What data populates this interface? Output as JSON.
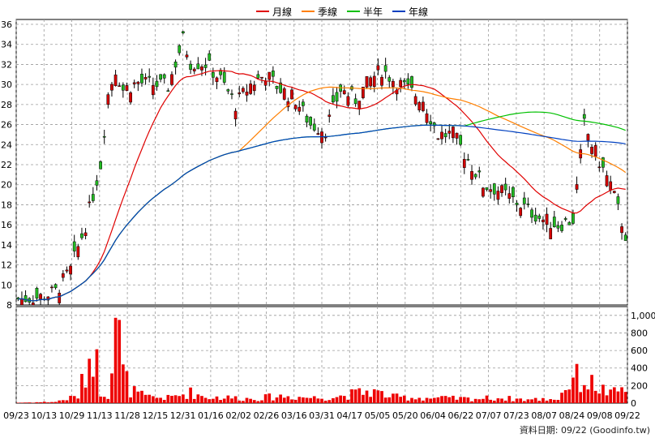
{
  "legend": [
    {
      "label": "月線",
      "color": "#e00000"
    },
    {
      "label": "季線",
      "color": "#ff7f00"
    },
    {
      "label": "半年",
      "color": "#00c000"
    },
    {
      "label": "年線",
      "color": "#0040c0"
    }
  ],
  "credit": "資料日期: 09/22  (Goodinfo.tw)",
  "chart_data": {
    "type": "candlestick",
    "price_axis": {
      "min": 8,
      "max": 36,
      "ticks": [
        "8",
        "10",
        "12",
        "14",
        "16",
        "18",
        "20",
        "22",
        "24",
        "26",
        "28",
        "30",
        "32",
        "34",
        "36"
      ]
    },
    "volume_axis": {
      "min": 0,
      "max": 1100,
      "ticks": [
        "0",
        "200",
        "400",
        "600",
        "800",
        "1,000"
      ]
    },
    "x_labels": [
      "09/23",
      "10/13",
      "10/29",
      "11/13",
      "11/28",
      "12/15",
      "12/31",
      "01/16",
      "02/02",
      "02/26",
      "03/16",
      "03/31",
      "04/17",
      "05/05",
      "05/20",
      "06/04",
      "06/22",
      "07/07",
      "07/23",
      "08/07",
      "08/24",
      "09/08",
      "09/22"
    ],
    "price_keypoints": [
      [
        0,
        8.6
      ],
      [
        6,
        8.8
      ],
      [
        10,
        9.3
      ],
      [
        14,
        11.5
      ],
      [
        18,
        16
      ],
      [
        22,
        22
      ],
      [
        24,
        29
      ],
      [
        26,
        31.5
      ],
      [
        28,
        29.5
      ],
      [
        32,
        30.2
      ],
      [
        36,
        30
      ],
      [
        40,
        29.8
      ],
      [
        44,
        34.5
      ],
      [
        46,
        32.2
      ],
      [
        50,
        32.1
      ],
      [
        54,
        30.5
      ],
      [
        58,
        28
      ],
      [
        62,
        30
      ],
      [
        66,
        31
      ],
      [
        70,
        29.5
      ],
      [
        74,
        28.5
      ],
      [
        78,
        26
      ],
      [
        82,
        25.5
      ],
      [
        86,
        29.5
      ],
      [
        90,
        28.5
      ],
      [
        94,
        30.5
      ],
      [
        97,
        31.5
      ],
      [
        100,
        30.5
      ],
      [
        104,
        29.5
      ],
      [
        108,
        28.5
      ],
      [
        112,
        25
      ],
      [
        116,
        25
      ],
      [
        120,
        22.5
      ],
      [
        124,
        20
      ],
      [
        128,
        19.5
      ],
      [
        132,
        18.5
      ],
      [
        136,
        17.5
      ],
      [
        140,
        16.5
      ],
      [
        144,
        16
      ],
      [
        148,
        16.5
      ],
      [
        151,
        26
      ],
      [
        153,
        24
      ],
      [
        156,
        21.5
      ],
      [
        158,
        20
      ],
      [
        160,
        17.5
      ],
      [
        162,
        15
      ]
    ],
    "volume_keypoints": [
      [
        0,
        5
      ],
      [
        10,
        15
      ],
      [
        16,
        80
      ],
      [
        18,
        350
      ],
      [
        20,
        700
      ],
      [
        22,
        150
      ],
      [
        24,
        100
      ],
      [
        26,
        1100
      ],
      [
        28,
        350
      ],
      [
        30,
        150
      ],
      [
        34,
        70
      ],
      [
        40,
        60
      ],
      [
        46,
        120
      ],
      [
        50,
        70
      ],
      [
        58,
        60
      ],
      [
        62,
        50
      ],
      [
        70,
        80
      ],
      [
        80,
        60
      ],
      [
        86,
        80
      ],
      [
        94,
        140
      ],
      [
        100,
        70
      ],
      [
        108,
        60
      ],
      [
        120,
        50
      ],
      [
        128,
        60
      ],
      [
        136,
        40
      ],
      [
        144,
        50
      ],
      [
        148,
        300
      ],
      [
        154,
        200
      ],
      [
        158,
        100
      ],
      [
        162,
        180
      ]
    ],
    "n_bars": 163
  }
}
